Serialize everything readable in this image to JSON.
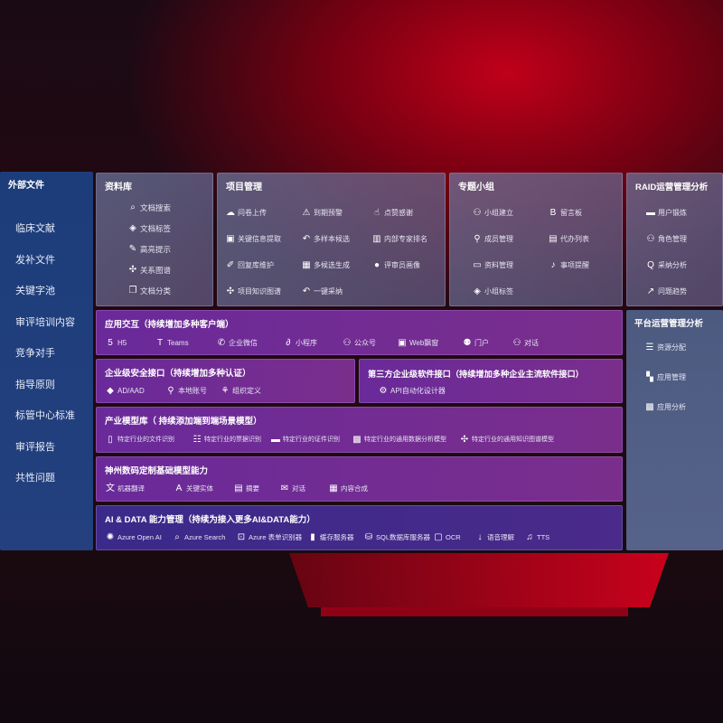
{
  "sidebar": {
    "title": "外部文件",
    "items": [
      "临床文献",
      "发补文件",
      "关键字池",
      "审评培训内容",
      "竞争对手",
      "指导原则",
      "标管中心标准",
      "审评报告",
      "共性问题"
    ]
  },
  "library": {
    "title": "资料库",
    "items": [
      {
        "icon": "doc-search-icon",
        "label": "文档搜索"
      },
      {
        "icon": "tag-icon",
        "label": "文档标签"
      },
      {
        "icon": "pen-icon",
        "label": "高亮提示"
      },
      {
        "icon": "graph-icon",
        "label": "关系图谱"
      },
      {
        "icon": "copy-icon",
        "label": "文档分类"
      }
    ]
  },
  "project": {
    "title": "项目管理",
    "items": [
      {
        "icon": "cloud-upload-icon",
        "label": "问卷上传"
      },
      {
        "icon": "alarm-icon",
        "label": "到期预警"
      },
      {
        "icon": "thumbs-up-icon",
        "label": "点赞感谢"
      },
      {
        "icon": "window-icon",
        "label": "关键信息提取"
      },
      {
        "icon": "reply-icon",
        "label": "多样本候选"
      },
      {
        "icon": "ranking-icon",
        "label": "内部专家排名"
      },
      {
        "icon": "edit-icon",
        "label": "回复库维护"
      },
      {
        "icon": "puzzle-icon",
        "label": "多候选生成"
      },
      {
        "icon": "user-icon",
        "label": "评审员画像"
      },
      {
        "icon": "graph-icon",
        "label": "项目知识图谱"
      },
      {
        "icon": "reply-icon",
        "label": "一键采纳"
      }
    ]
  },
  "group": {
    "title": "专题小组",
    "items": [
      {
        "icon": "users-icon",
        "label": "小组建立"
      },
      {
        "icon": "bbs-icon",
        "label": "留言板"
      },
      {
        "icon": "user-add-icon",
        "label": "成员管理"
      },
      {
        "icon": "clipboard-icon",
        "label": "代办列表"
      },
      {
        "icon": "folder-icon",
        "label": "资料管理"
      },
      {
        "icon": "bell-icon",
        "label": "事项提醒"
      },
      {
        "icon": "tag-icon",
        "label": "小组标签"
      }
    ]
  },
  "raid": {
    "title": "RAID运营管理分析",
    "items": [
      {
        "icon": "id-card-icon",
        "label": "用户锻炼"
      },
      {
        "icon": "users-icon",
        "label": "角色管理"
      },
      {
        "icon": "qa-icon",
        "label": "采纳分析"
      },
      {
        "icon": "trend-icon",
        "label": "问题趋势"
      }
    ]
  },
  "platform": {
    "title": "平台运营管理分析",
    "items": [
      {
        "icon": "list-icon",
        "label": "资源分配"
      },
      {
        "icon": "apps-icon",
        "label": "应用管理"
      },
      {
        "icon": "chart-icon",
        "label": "应用分析"
      }
    ]
  },
  "interaction": {
    "title": "应用交互（持续增加多种客户端）",
    "items": [
      {
        "icon": "html5-icon",
        "label": "H5"
      },
      {
        "icon": "teams-icon",
        "label": "Teams"
      },
      {
        "icon": "wechat-icon",
        "label": "企业微信"
      },
      {
        "icon": "miniprogram-icon",
        "label": "小程序"
      },
      {
        "icon": "users-icon",
        "label": "公众号"
      },
      {
        "icon": "window-icon",
        "label": "Web飘窗"
      },
      {
        "icon": "user-desk-icon",
        "label": "门户"
      },
      {
        "icon": "chat-users-icon",
        "label": "对话"
      }
    ]
  },
  "security": {
    "title": "企业级安全接口（持续增加多种认证）",
    "items": [
      {
        "icon": "diamond-icon",
        "label": "AD/AAD"
      },
      {
        "icon": "user-lock-icon",
        "label": "本地账号"
      },
      {
        "icon": "org-icon",
        "label": "组织定义"
      }
    ]
  },
  "thirdparty": {
    "title": "第三方企业级软件接口（持续增加多种企业主流软件接口）",
    "items": [
      {
        "icon": "gear-icon",
        "label": "API自动化设计器"
      }
    ]
  },
  "industry": {
    "title": "产业模型库（ 持续添加端到端场景模型）",
    "items": [
      {
        "icon": "file-icon",
        "label": "特定行业的文件识别"
      },
      {
        "icon": "receipt-icon",
        "label": "特定行业的票据识别"
      },
      {
        "icon": "id-card-icon",
        "label": "特定行业的证件识别"
      },
      {
        "icon": "chart-icon",
        "label": "特定行业的通用数据分析模型"
      },
      {
        "icon": "graph-icon",
        "label": "特定行业的通用知识图谱模型"
      }
    ]
  },
  "foundation": {
    "title": "神州数码定制基础模型能力",
    "items": [
      {
        "icon": "translate-icon",
        "label": "机器翻译"
      },
      {
        "icon": "entity-icon",
        "label": "关键实体"
      },
      {
        "icon": "doc-icon",
        "label": "摘要"
      },
      {
        "icon": "chat-icon",
        "label": "对话"
      },
      {
        "icon": "puzzle-icon",
        "label": "内容合成"
      }
    ]
  },
  "ai": {
    "title": "AI & DATA 能力管理（持续为接入更多AI&DATA能力）",
    "items": [
      {
        "icon": "openai-icon",
        "label": "Azure Open AI"
      },
      {
        "icon": "search-icon",
        "label": "Azure Search"
      },
      {
        "icon": "form-icon",
        "label": "Azure 表单识别器"
      },
      {
        "icon": "cache-icon",
        "label": "缓存服务器"
      },
      {
        "icon": "database-icon",
        "label": "SQL数据库服务器"
      },
      {
        "icon": "ocr-icon",
        "label": "OCR"
      },
      {
        "icon": "speech-icon",
        "label": "语音理解"
      },
      {
        "icon": "tts-icon",
        "label": "TTS"
      }
    ]
  }
}
